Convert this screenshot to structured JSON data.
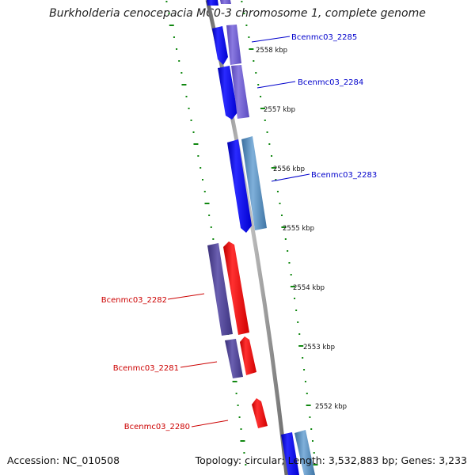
{
  "title": "Burkholderia cenocepacia MC0-3 chromosome 1, complete genome",
  "accession_text": "Accession: NC_010508",
  "stats_text": "Topology: circular; Length: 3,532,883 bp; Genes: 3,233",
  "colors": {
    "backbone": "#8a8a8a",
    "tick": "#118811",
    "forward_label": "#0000cc",
    "reverse_label": "#cc0000",
    "cds_forward": "#0000ee",
    "cds_reverse": "#ee0000",
    "cog_purple": "#6a5acd",
    "cog_steel": "#4682b4",
    "cog_dark": "#483d8b"
  },
  "scale": {
    "unit": "kbp",
    "ticks": [
      {
        "label": "2558 kbp"
      },
      {
        "label": "2557 kbp"
      },
      {
        "label": "2556 kbp"
      },
      {
        "label": "2555 kbp"
      },
      {
        "label": "2554 kbp"
      },
      {
        "label": "2553 kbp"
      },
      {
        "label": "2552 kbp"
      }
    ]
  },
  "genes": [
    {
      "name": "Bcenmc03_2285",
      "strand": "forward"
    },
    {
      "name": "Bcenmc03_2284",
      "strand": "forward"
    },
    {
      "name": "Bcenmc03_2283",
      "strand": "forward"
    },
    {
      "name": "Bcenmc03_2282",
      "strand": "reverse"
    },
    {
      "name": "Bcenmc03_2281",
      "strand": "reverse"
    },
    {
      "name": "Bcenmc03_2280",
      "strand": "reverse"
    }
  ]
}
